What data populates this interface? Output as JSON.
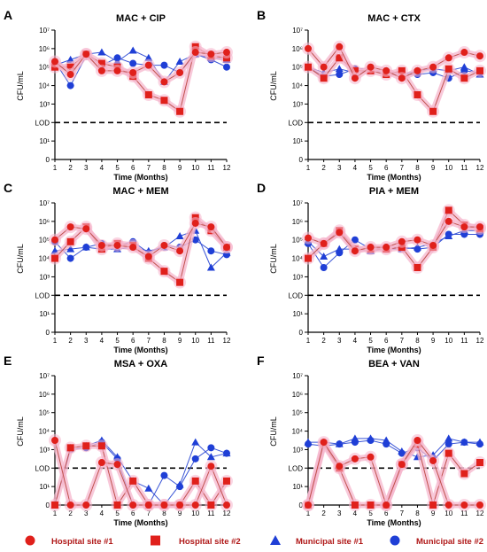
{
  "colors": {
    "red": "#e0201b",
    "red_line": "#c0504d",
    "blue": "#1f3fd6",
    "blue_line": "#3a55d6",
    "highlight": "#f5b5cc",
    "axis": "#000000",
    "legend_text": "#b01818"
  },
  "legend": [
    {
      "label": "Hospital site #1",
      "marker": "circle",
      "color": "red"
    },
    {
      "label": "Hospital site #2",
      "marker": "square",
      "color": "red"
    },
    {
      "label": "Municipal site #1",
      "marker": "triangle",
      "color": "blue"
    },
    {
      "label": "Municipal site #2",
      "marker": "circle",
      "color": "blue"
    }
  ],
  "chart_data": [
    {
      "letter": "A",
      "title": "MAC + CIP",
      "type": "line",
      "xlabel": "Time (Months)",
      "ylabel": "CFU/mL",
      "x": [
        1,
        2,
        3,
        4,
        5,
        6,
        7,
        8,
        9,
        10,
        11,
        12
      ],
      "y_scale": "log10",
      "y_tick_labels": [
        "0",
        "10¹",
        "LOD",
        "10³",
        "10⁴",
        "10⁵",
        "10⁶",
        "10⁷"
      ],
      "y_exponent_range": [
        0,
        7
      ],
      "lod_log": 2,
      "series": [
        {
          "name": "Hospital site #1",
          "values_log": [
            5.3,
            4.6,
            5.7,
            4.8,
            4.8,
            4.7,
            5.1,
            4.2,
            4.7,
            5.8,
            5.7,
            5.8
          ]
        },
        {
          "name": "Hospital site #2",
          "values_log": [
            5.0,
            5.0,
            5.7,
            5.2,
            5.0,
            4.5,
            3.5,
            3.2,
            2.6,
            6.1,
            5.6,
            5.5
          ]
        },
        {
          "name": "Municipal site #1",
          "values_log": [
            5.1,
            5.4,
            5.7,
            5.8,
            5.3,
            5.9,
            5.5,
            4.2,
            5.3,
            5.7,
            5.5,
            5.4
          ]
        },
        {
          "name": "Municipal site #2",
          "values_log": [
            5.3,
            4.0,
            5.6,
            5.1,
            5.5,
            5.2,
            5.1,
            5.1,
            4.7,
            5.7,
            5.4,
            5.0
          ]
        }
      ]
    },
    {
      "letter": "B",
      "title": "MAC + CTX",
      "type": "line",
      "xlabel": "Time (Months)",
      "ylabel": "CFU/mL",
      "x": [
        1,
        2,
        3,
        4,
        5,
        6,
        7,
        8,
        9,
        10,
        11,
        12
      ],
      "y_scale": "log10",
      "y_tick_labels": [
        "0",
        "10¹",
        "LOD",
        "10³",
        "10⁴",
        "10⁵",
        "10⁶",
        "10⁷"
      ],
      "y_exponent_range": [
        0,
        7
      ],
      "lod_log": 2,
      "series": [
        {
          "name": "Hospital site #1",
          "values_log": [
            6.0,
            5.0,
            6.1,
            4.4,
            5.0,
            4.8,
            4.4,
            4.8,
            5.0,
            5.5,
            5.8,
            5.6
          ]
        },
        {
          "name": "Hospital site #2",
          "values_log": [
            5.0,
            4.4,
            5.5,
            4.8,
            4.8,
            4.6,
            4.8,
            3.5,
            2.6,
            4.9,
            4.4,
            4.8
          ]
        },
        {
          "name": "Municipal site #1",
          "values_log": [
            5.0,
            4.7,
            4.9,
            4.7,
            4.8,
            4.8,
            4.6,
            4.8,
            4.9,
            4.8,
            5.0,
            4.6
          ]
        },
        {
          "name": "Municipal site #2",
          "values_log": [
            5.0,
            4.5,
            4.6,
            4.9,
            4.9,
            4.6,
            4.6,
            4.6,
            4.7,
            4.4,
            4.8,
            4.7
          ]
        }
      ]
    },
    {
      "letter": "C",
      "title": "MAC + MEM",
      "type": "line",
      "xlabel": "Time (Months)",
      "ylabel": "CFU/mL",
      "x": [
        1,
        2,
        3,
        4,
        5,
        6,
        7,
        8,
        9,
        10,
        11,
        12
      ],
      "y_scale": "log10",
      "y_tick_labels": [
        "0",
        "10¹",
        "LOD",
        "10³",
        "10⁴",
        "10⁵",
        "10⁶",
        "10⁷"
      ],
      "y_exponent_range": [
        0,
        7
      ],
      "lod_log": 2,
      "series": [
        {
          "name": "Hospital site #1",
          "values_log": [
            5.0,
            5.7,
            5.6,
            4.7,
            4.7,
            4.6,
            4.1,
            4.7,
            4.4,
            5.9,
            5.7,
            4.6
          ]
        },
        {
          "name": "Hospital site #2",
          "values_log": [
            4.0,
            4.9,
            5.7,
            4.5,
            4.8,
            4.7,
            4.0,
            3.3,
            2.7,
            6.2,
            5.5,
            4.6
          ]
        },
        {
          "name": "Municipal site #1",
          "values_log": [
            4.4,
            4.5,
            4.6,
            4.5,
            4.5,
            4.6,
            4.4,
            4.6,
            5.2,
            5.5,
            3.5,
            4.3
          ]
        },
        {
          "name": "Municipal site #2",
          "values_log": [
            4.9,
            4.0,
            4.6,
            4.8,
            4.7,
            4.9,
            4.3,
            4.7,
            4.6,
            5.0,
            4.4,
            4.2
          ]
        }
      ]
    },
    {
      "letter": "D",
      "title": "PIA + MEM",
      "type": "line",
      "xlabel": "Time (Months)",
      "ylabel": "CFU/mL",
      "x": [
        1,
        2,
        3,
        4,
        5,
        6,
        7,
        8,
        9,
        10,
        11,
        12
      ],
      "y_scale": "log10",
      "y_tick_labels": [
        "0",
        "10¹",
        "LOD",
        "10³",
        "10⁴",
        "10⁵",
        "10⁶",
        "10⁷"
      ],
      "y_exponent_range": [
        0,
        7
      ],
      "lod_log": 2,
      "series": [
        {
          "name": "Hospital site #1",
          "values_log": [
            5.1,
            4.8,
            5.4,
            4.4,
            4.6,
            4.6,
            4.9,
            5.0,
            4.7,
            6.0,
            5.7,
            5.7
          ]
        },
        {
          "name": "Hospital site #2",
          "values_log": [
            4.0,
            4.8,
            5.5,
            4.5,
            4.5,
            4.5,
            4.6,
            3.5,
            4.6,
            6.6,
            5.8,
            5.6
          ]
        },
        {
          "name": "Municipal site #1",
          "values_log": [
            4.9,
            4.1,
            4.5,
            4.5,
            4.4,
            4.5,
            4.5,
            4.6,
            4.8,
            5.2,
            5.5,
            5.5
          ]
        },
        {
          "name": "Municipal site #2",
          "values_log": [
            4.8,
            3.5,
            4.3,
            5.0,
            4.5,
            4.6,
            4.6,
            4.5,
            4.6,
            5.3,
            5.3,
            5.3
          ]
        }
      ]
    },
    {
      "letter": "E",
      "title": "MSA + OXA",
      "type": "line",
      "xlabel": "Time (Months)",
      "ylabel": "CFU/mL",
      "x": [
        1,
        2,
        3,
        4,
        5,
        6,
        7,
        8,
        9,
        10,
        11,
        12
      ],
      "y_scale": "log10",
      "y_tick_labels": [
        "0",
        "10¹",
        "LOD",
        "10³",
        "10⁴",
        "10⁵",
        "10⁶",
        "10⁷"
      ],
      "y_exponent_range": [
        0,
        7
      ],
      "lod_log": 2,
      "series": [
        {
          "name": "Hospital site #1",
          "values_log": [
            3.5,
            0,
            0,
            2.3,
            2.2,
            0,
            0,
            0,
            0,
            0,
            2.1,
            0
          ]
        },
        {
          "name": "Hospital site #2",
          "values_log": [
            0,
            3.1,
            3.2,
            3.2,
            0,
            1.3,
            0,
            0,
            0,
            1.3,
            0,
            1.3
          ]
        },
        {
          "name": "Municipal site #1",
          "values_log": [
            0,
            3.1,
            3.2,
            3.5,
            2.6,
            1.3,
            0.9,
            0,
            1.1,
            3.4,
            2.6,
            2.8
          ]
        },
        {
          "name": "Municipal site #2",
          "values_log": [
            0,
            3.0,
            3.1,
            3.4,
            2.5,
            0,
            0,
            1.6,
            1.0,
            2.5,
            3.1,
            2.8
          ]
        }
      ]
    },
    {
      "letter": "F",
      "title": "BEA + VAN",
      "type": "line",
      "xlabel": "Time (Months)",
      "ylabel": "CFU/mL",
      "x": [
        1,
        2,
        3,
        4,
        5,
        6,
        7,
        8,
        9,
        10,
        11,
        12
      ],
      "y_scale": "log10",
      "y_tick_labels": [
        "0",
        "10¹",
        "LOD",
        "10³",
        "10⁴",
        "10⁵",
        "10⁶",
        "10⁷"
      ],
      "y_exponent_range": [
        0,
        7
      ],
      "lod_log": 2,
      "series": [
        {
          "name": "Hospital site #1",
          "values_log": [
            0,
            3.4,
            2.1,
            2.5,
            2.6,
            0,
            2.2,
            3.5,
            2.4,
            0,
            0,
            0
          ]
        },
        {
          "name": "Hospital site #2",
          "values_log": [
            0,
            3.3,
            2.0,
            0,
            0,
            0,
            2.2,
            3.3,
            0,
            2.8,
            1.7,
            2.3
          ]
        },
        {
          "name": "Municipal site #1",
          "values_log": [
            3.4,
            3.4,
            3.3,
            3.6,
            3.6,
            3.5,
            2.9,
            2.6,
            2.7,
            3.6,
            3.4,
            3.4
          ]
        },
        {
          "name": "Municipal site #2",
          "values_log": [
            3.3,
            3.2,
            3.3,
            3.4,
            3.5,
            3.3,
            2.8,
            3.1,
            2.4,
            3.3,
            3.4,
            3.3
          ]
        }
      ]
    }
  ]
}
